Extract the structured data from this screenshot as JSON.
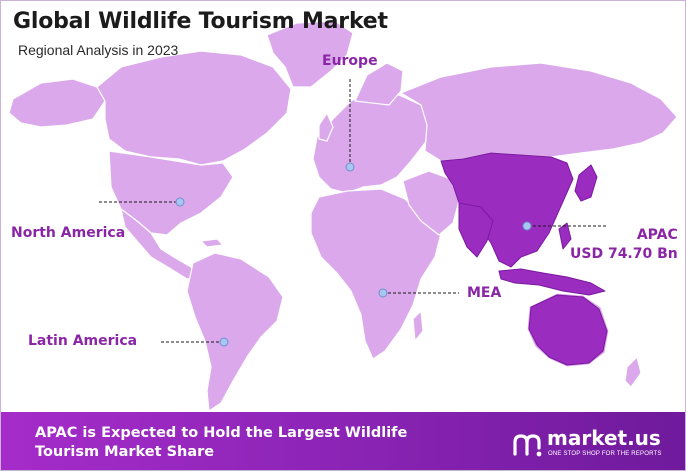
{
  "header": {
    "title": "Global Wildlife Tourism Market",
    "subtitle": "Regional Analysis in 2023"
  },
  "regions": {
    "europe": "Europe",
    "north_america": "North America",
    "latin_america": "Latin America",
    "mea": "MEA",
    "apac": "APAC",
    "apac_value": "USD 74.70 Bn"
  },
  "footer": {
    "text": "APAC is Expected to Hold the Largest Wildlife Tourism Market Share",
    "brand_name": "market.us",
    "brand_tagline": "ONE STOP SHOP FOR THE REPORTS"
  },
  "colors": {
    "land": "#dba8ec",
    "apac_highlight": "#9a2cc0",
    "apac_border": "#7b1aa0",
    "accent_text": "#8a26a6",
    "marker": "#a9c6f2",
    "footer_start": "#a52cc9",
    "footer_end": "#6f1a9c"
  }
}
